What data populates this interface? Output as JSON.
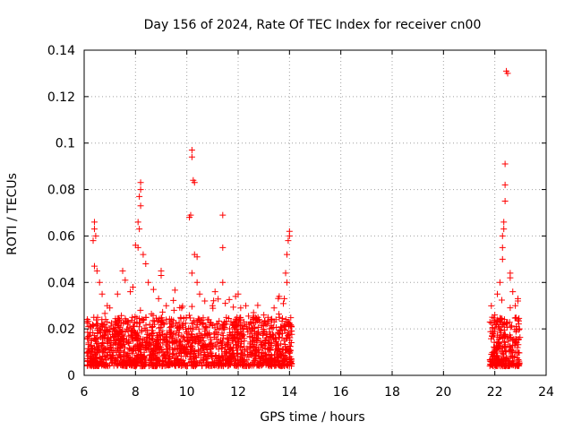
{
  "chart_data": {
    "type": "scatter",
    "title": "Day 156 of 2024, Rate Of TEC Index for receiver cn00",
    "xlabel": "GPS time / hours",
    "ylabel": "ROTI / TECUs",
    "xlim": [
      6,
      24
    ],
    "ylim": [
      0,
      0.14
    ],
    "xticks": [
      6,
      8,
      10,
      12,
      14,
      16,
      18,
      20,
      22,
      24
    ],
    "yticks": [
      0,
      0.02,
      0.04,
      0.06,
      0.08,
      0.1,
      0.12,
      0.14
    ],
    "ytick_labels": [
      "0",
      "0.02",
      "0.04",
      "0.06",
      "0.08",
      "0.1",
      "0.12",
      "0.14"
    ],
    "grid": true,
    "marker": "+",
    "color": "#ff0000",
    "series": [
      {
        "name": "cn00",
        "segments": [
          {
            "x_range": [
              6.1,
              14.1
            ],
            "typical_range": [
              0.004,
              0.025
            ]
          },
          {
            "x_range": [
              21.8,
              23.0
            ],
            "typical_range": [
              0.004,
              0.025
            ]
          }
        ],
        "points": [
          {
            "x": 6.4,
            "y": 0.066
          },
          {
            "x": 6.4,
            "y": 0.063
          },
          {
            "x": 6.45,
            "y": 0.06
          },
          {
            "x": 6.35,
            "y": 0.058
          },
          {
            "x": 6.4,
            "y": 0.047
          },
          {
            "x": 6.5,
            "y": 0.045
          },
          {
            "x": 6.6,
            "y": 0.04
          },
          {
            "x": 6.7,
            "y": 0.035
          },
          {
            "x": 6.9,
            "y": 0.03
          },
          {
            "x": 7.0,
            "y": 0.029
          },
          {
            "x": 7.3,
            "y": 0.035
          },
          {
            "x": 7.5,
            "y": 0.045
          },
          {
            "x": 7.6,
            "y": 0.041
          },
          {
            "x": 7.8,
            "y": 0.036
          },
          {
            "x": 7.9,
            "y": 0.038
          },
          {
            "x": 8.0,
            "y": 0.056
          },
          {
            "x": 8.1,
            "y": 0.066
          },
          {
            "x": 8.15,
            "y": 0.063
          },
          {
            "x": 8.2,
            "y": 0.083
          },
          {
            "x": 8.2,
            "y": 0.08
          },
          {
            "x": 8.15,
            "y": 0.077
          },
          {
            "x": 8.2,
            "y": 0.073
          },
          {
            "x": 8.1,
            "y": 0.055
          },
          {
            "x": 8.3,
            "y": 0.052
          },
          {
            "x": 8.4,
            "y": 0.048
          },
          {
            "x": 8.5,
            "y": 0.04
          },
          {
            "x": 8.7,
            "y": 0.037
          },
          {
            "x": 8.9,
            "y": 0.033
          },
          {
            "x": 9.0,
            "y": 0.045
          },
          {
            "x": 9.0,
            "y": 0.043
          },
          {
            "x": 9.2,
            "y": 0.03
          },
          {
            "x": 9.5,
            "y": 0.028
          },
          {
            "x": 9.8,
            "y": 0.029
          },
          {
            "x": 10.1,
            "y": 0.068
          },
          {
            "x": 10.15,
            "y": 0.069
          },
          {
            "x": 10.2,
            "y": 0.097
          },
          {
            "x": 10.2,
            "y": 0.094
          },
          {
            "x": 10.25,
            "y": 0.084
          },
          {
            "x": 10.3,
            "y": 0.083
          },
          {
            "x": 10.3,
            "y": 0.052
          },
          {
            "x": 10.4,
            "y": 0.051
          },
          {
            "x": 10.4,
            "y": 0.04
          },
          {
            "x": 10.5,
            "y": 0.035
          },
          {
            "x": 10.2,
            "y": 0.044
          },
          {
            "x": 10.7,
            "y": 0.032
          },
          {
            "x": 11.0,
            "y": 0.03
          },
          {
            "x": 11.1,
            "y": 0.036
          },
          {
            "x": 11.4,
            "y": 0.069
          },
          {
            "x": 11.4,
            "y": 0.055
          },
          {
            "x": 11.4,
            "y": 0.04
          },
          {
            "x": 11.5,
            "y": 0.031
          },
          {
            "x": 11.9,
            "y": 0.034
          },
          {
            "x": 12.0,
            "y": 0.035
          },
          {
            "x": 12.1,
            "y": 0.029
          },
          {
            "x": 12.3,
            "y": 0.03
          },
          {
            "x": 12.6,
            "y": 0.027
          },
          {
            "x": 13.0,
            "y": 0.026
          },
          {
            "x": 13.4,
            "y": 0.029
          },
          {
            "x": 13.6,
            "y": 0.034
          },
          {
            "x": 13.8,
            "y": 0.033
          },
          {
            "x": 13.85,
            "y": 0.044
          },
          {
            "x": 13.9,
            "y": 0.052
          },
          {
            "x": 13.95,
            "y": 0.058
          },
          {
            "x": 14.0,
            "y": 0.062
          },
          {
            "x": 14.0,
            "y": 0.06
          },
          {
            "x": 13.9,
            "y": 0.04
          },
          {
            "x": 21.9,
            "y": 0.025
          },
          {
            "x": 22.1,
            "y": 0.035
          },
          {
            "x": 22.2,
            "y": 0.04
          },
          {
            "x": 22.3,
            "y": 0.05
          },
          {
            "x": 22.3,
            "y": 0.055
          },
          {
            "x": 22.3,
            "y": 0.06
          },
          {
            "x": 22.35,
            "y": 0.063
          },
          {
            "x": 22.35,
            "y": 0.066
          },
          {
            "x": 22.4,
            "y": 0.075
          },
          {
            "x": 22.4,
            "y": 0.082
          },
          {
            "x": 22.4,
            "y": 0.091
          },
          {
            "x": 22.45,
            "y": 0.131
          },
          {
            "x": 22.5,
            "y": 0.13
          },
          {
            "x": 22.6,
            "y": 0.044
          },
          {
            "x": 22.6,
            "y": 0.042
          },
          {
            "x": 22.7,
            "y": 0.036
          },
          {
            "x": 22.8,
            "y": 0.03
          },
          {
            "x": 22.9,
            "y": 0.033
          },
          {
            "x": 22.9,
            "y": 0.032
          },
          {
            "x": 22.0,
            "y": 0.026
          }
        ]
      }
    ]
  }
}
